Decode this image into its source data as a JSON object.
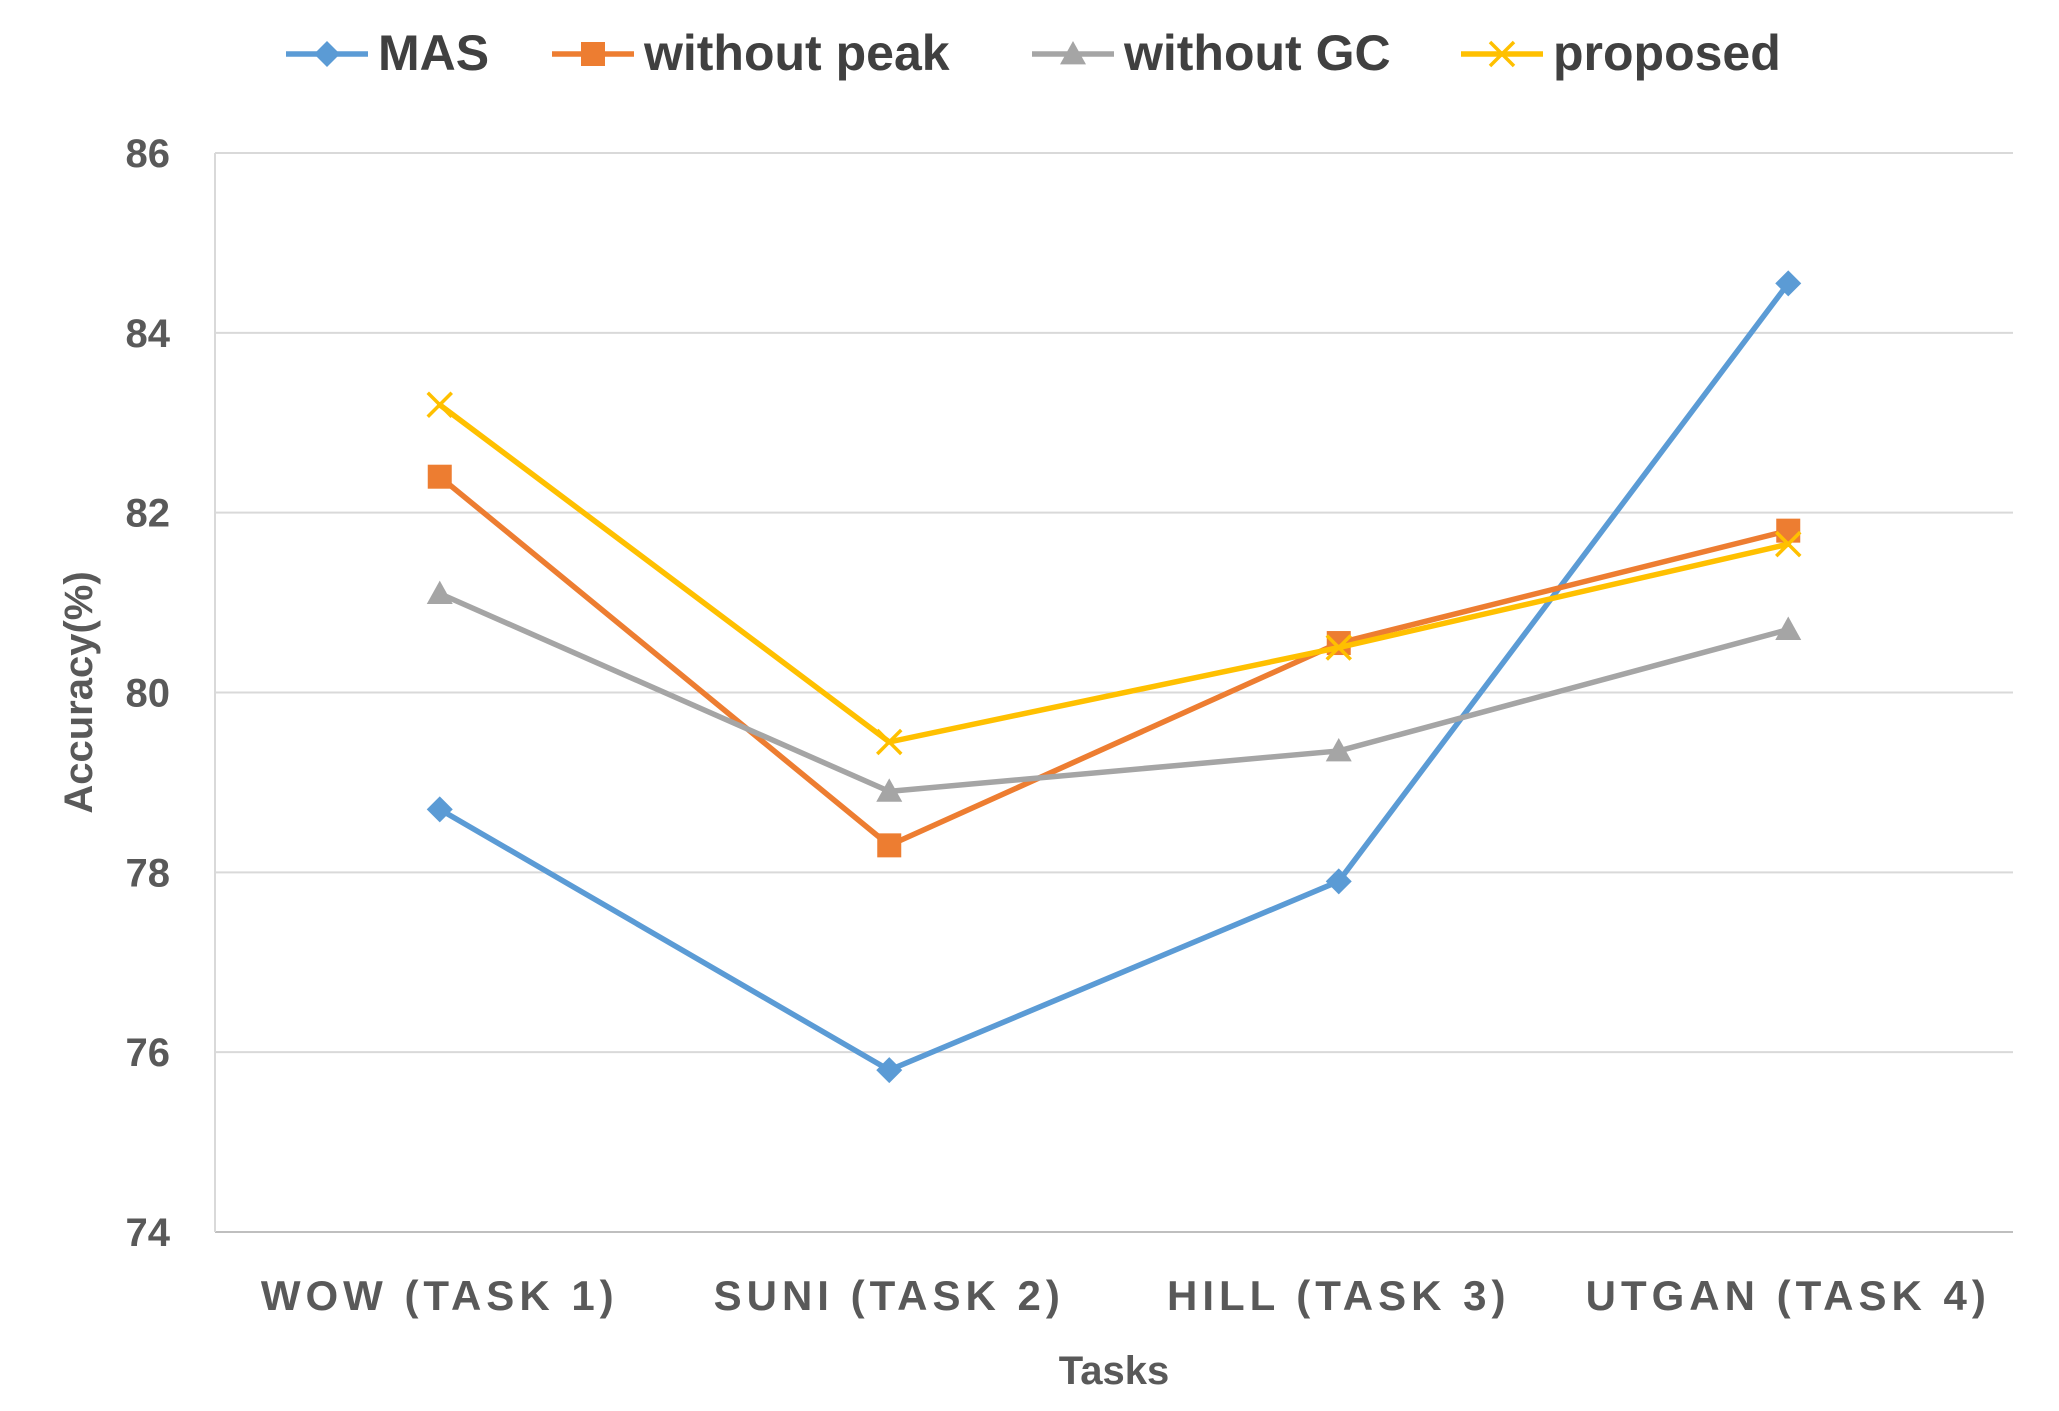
{
  "chart_data": {
    "type": "line",
    "title": "",
    "xlabel": "Tasks",
    "ylabel": "Accuracy(%)",
    "categories": [
      "WOW (TASK 1)",
      "SUNI (TASK 2)",
      "HILL (TASK 3)",
      "UTGAN (TASK 4)"
    ],
    "ylim": [
      74,
      86
    ],
    "yticks": [
      74,
      76,
      78,
      80,
      82,
      84,
      86
    ],
    "grid": true,
    "legend_position": "top",
    "series": [
      {
        "name": "MAS",
        "values": [
          78.7,
          75.8,
          77.9,
          84.55
        ],
        "color": "#5B9BD5",
        "marker": "diamond"
      },
      {
        "name": "without peak",
        "values": [
          82.4,
          78.3,
          80.55,
          81.8
        ],
        "color": "#ED7D31",
        "marker": "square"
      },
      {
        "name": "without GC",
        "values": [
          81.1,
          78.9,
          79.35,
          80.7
        ],
        "color": "#A5A5A5",
        "marker": "triangle"
      },
      {
        "name": "proposed",
        "values": [
          83.2,
          79.45,
          80.5,
          81.65
        ],
        "color": "#FFC000",
        "marker": "x"
      }
    ]
  }
}
